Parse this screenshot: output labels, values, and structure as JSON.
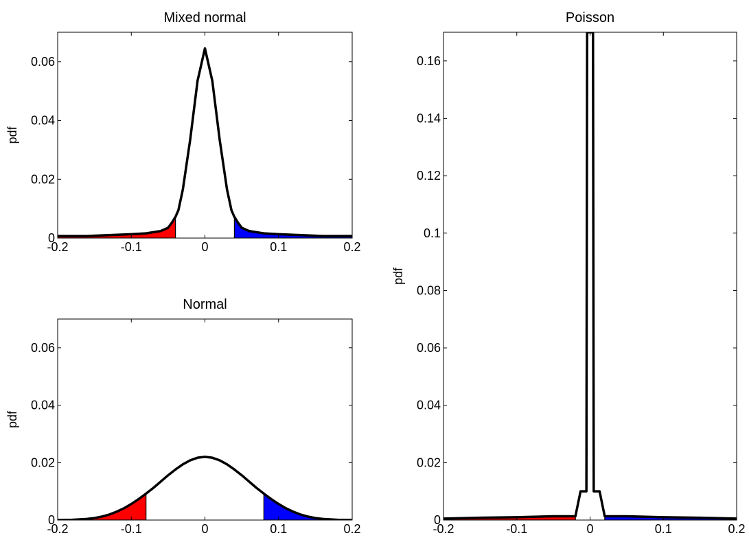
{
  "colors": {
    "left_tail": "#ff0000",
    "right_tail": "#0000ff",
    "curve": "#000000",
    "axes": "#000000",
    "background": "#ffffff"
  },
  "chart_data": [
    {
      "type": "area",
      "title": "Mixed normal",
      "xlabel": "",
      "ylabel": "pdf",
      "xlim": [
        -0.2,
        0.2
      ],
      "ylim": [
        0,
        0.07
      ],
      "xticks": [
        -0.2,
        -0.1,
        0,
        0.1,
        0.2
      ],
      "xtick_labels": [
        "-0.2",
        "-0.1",
        "0",
        "0.1",
        "0.2"
      ],
      "yticks": [
        0,
        0.02,
        0.04,
        0.06
      ],
      "ytick_labels": [
        "0",
        "0.02",
        "0.04",
        "0.06"
      ],
      "grid": false,
      "series": [
        {
          "x": [
            -0.2,
            -0.16,
            -0.14,
            -0.12,
            -0.1,
            -0.08,
            -0.06,
            -0.05,
            -0.045,
            -0.04,
            -0.036,
            -0.03,
            -0.02,
            -0.01,
            0,
            0.01,
            0.02,
            0.03,
            0.036,
            0.04,
            0.045,
            0.05,
            0.06,
            0.08,
            0.1,
            0.12,
            0.14,
            0.16,
            0.2
          ],
          "y": [
            0.0007,
            0.0007,
            0.0009,
            0.0011,
            0.0013,
            0.0016,
            0.0024,
            0.0035,
            0.0052,
            0.0072,
            0.0095,
            0.0165,
            0.0335,
            0.0535,
            0.0645,
            0.0535,
            0.0335,
            0.0165,
            0.0095,
            0.0072,
            0.0052,
            0.0035,
            0.0024,
            0.0016,
            0.0013,
            0.0011,
            0.0009,
            0.0007,
            0.0007
          ]
        }
      ],
      "shaded_tails": [
        {
          "side": "left",
          "from": -0.2,
          "to": -0.04
        },
        {
          "side": "right",
          "from": 0.04,
          "to": 0.2
        }
      ]
    },
    {
      "type": "area",
      "title": "Normal",
      "xlabel": "",
      "ylabel": "pdf",
      "xlim": [
        -0.2,
        0.2
      ],
      "ylim": [
        0,
        0.07
      ],
      "xticks": [
        -0.2,
        -0.1,
        0,
        0.1,
        0.2
      ],
      "xtick_labels": [
        "-0.2",
        "-0.1",
        "0",
        "0.1",
        "0.2"
      ],
      "yticks": [
        0,
        0.02,
        0.04,
        0.06
      ],
      "ytick_labels": [
        "0",
        "0.02",
        "0.04",
        "0.06"
      ],
      "grid": false,
      "series": [
        {
          "x": [
            -0.2,
            -0.18,
            -0.16,
            -0.15,
            -0.14,
            -0.13,
            -0.12,
            -0.11,
            -0.1,
            -0.09,
            -0.08,
            -0.07,
            -0.06,
            -0.05,
            -0.04,
            -0.03,
            -0.02,
            -0.01,
            0,
            0.01,
            0.02,
            0.03,
            0.04,
            0.05,
            0.06,
            0.07,
            0.08,
            0.09,
            0.1,
            0.11,
            0.12,
            0.13,
            0.14,
            0.15,
            0.16,
            0.18,
            0.2
          ],
          "y": [
            0.0,
            0.0001,
            0.0004,
            0.0007,
            0.0012,
            0.0019,
            0.0029,
            0.0041,
            0.0056,
            0.0073,
            0.0092,
            0.0112,
            0.0134,
            0.0156,
            0.0176,
            0.0194,
            0.0208,
            0.0217,
            0.022,
            0.0217,
            0.0208,
            0.0194,
            0.0176,
            0.0156,
            0.0134,
            0.0112,
            0.0092,
            0.0073,
            0.0056,
            0.0041,
            0.0029,
            0.0019,
            0.0012,
            0.0007,
            0.0004,
            0.0001,
            0.0
          ]
        }
      ],
      "shaded_tails": [
        {
          "side": "left",
          "from": -0.2,
          "to": -0.08
        },
        {
          "side": "right",
          "from": 0.08,
          "to": 0.2
        }
      ]
    },
    {
      "type": "area",
      "title": "Poisson",
      "xlabel": "",
      "ylabel": "pdf",
      "xlim": [
        -0.2,
        0.2
      ],
      "ylim": [
        0,
        0.17
      ],
      "xticks": [
        -0.2,
        -0.1,
        0,
        0.1,
        0.2
      ],
      "xtick_labels": [
        "-0.2",
        "-0.1",
        "0",
        "0.1",
        "0.2"
      ],
      "yticks": [
        0,
        0.02,
        0.04,
        0.06,
        0.08,
        0.1,
        0.12,
        0.14,
        0.16
      ],
      "ytick_labels": [
        "0",
        "0.02",
        "0.04",
        "0.06",
        "0.08",
        "0.1",
        "0.12",
        "0.14",
        "0.16"
      ],
      "grid": false,
      "series": [
        {
          "x": [
            -0.2,
            -0.15,
            -0.1,
            -0.05,
            -0.02,
            -0.013,
            -0.01,
            -0.005,
            -0.004,
            0.004,
            0.005,
            0.01,
            0.013,
            0.02,
            0.05,
            0.1,
            0.15,
            0.2
          ],
          "y": [
            0.0005,
            0.0008,
            0.001,
            0.0013,
            0.0013,
            0.01,
            0.01,
            0.01,
            0.17,
            0.17,
            0.01,
            0.01,
            0.01,
            0.0013,
            0.0013,
            0.001,
            0.0008,
            0.0005
          ]
        }
      ],
      "shaded_tails": [
        {
          "side": "left",
          "from": -0.2,
          "to": -0.02
        },
        {
          "side": "right",
          "from": 0.02,
          "to": 0.2
        }
      ]
    }
  ]
}
